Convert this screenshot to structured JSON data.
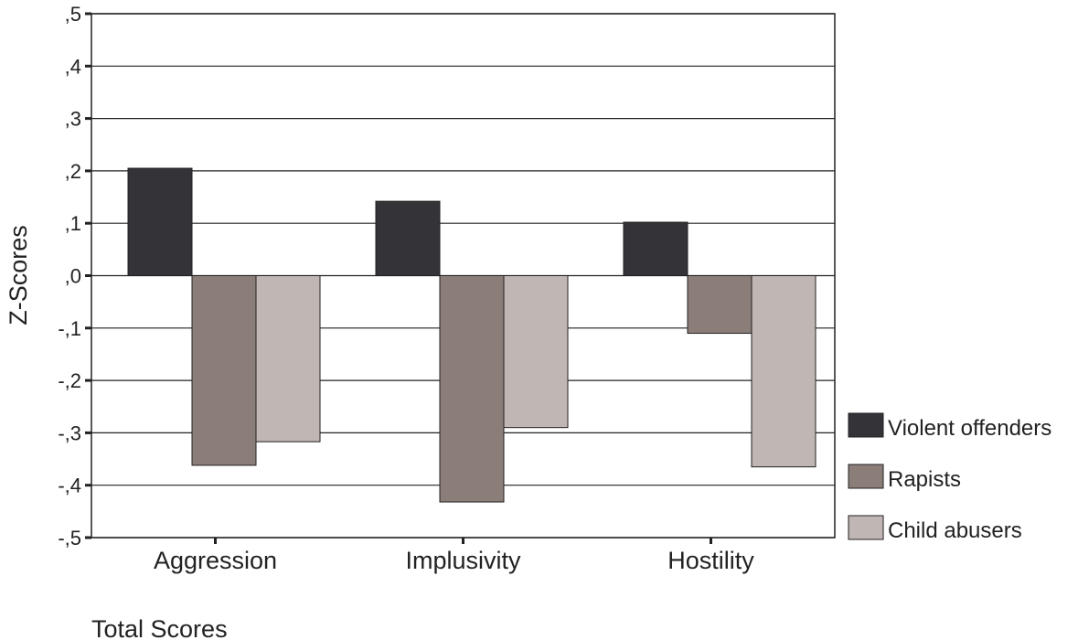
{
  "chart_data": {
    "type": "bar",
    "categories": [
      "Aggression",
      "Implusivity",
      "Hostility"
    ],
    "series": [
      {
        "name": "Violent offenders",
        "color": "#333338",
        "values": [
          0.205,
          0.142,
          0.102
        ]
      },
      {
        "name": "Rapists",
        "color": "#8b7e79",
        "values": [
          -0.362,
          -0.432,
          -0.11
        ]
      },
      {
        "name": "Child abusers",
        "color": "#c0b6b3",
        "values": [
          -0.317,
          -0.29,
          -0.365
        ]
      }
    ],
    "y_ticks": [
      0.5,
      0.4,
      0.3,
      0.2,
      0.1,
      0.0,
      -0.1,
      -0.2,
      -0.3,
      -0.4,
      -0.5
    ],
    "y_tick_labels": [
      ",5",
      ",4",
      ",3",
      ",2",
      ",1",
      ",0",
      "-,1",
      "-,2",
      "-,3",
      "-,4",
      "-,5"
    ],
    "ylim": [
      -0.5,
      0.5
    ],
    "xlabel": "Total Scores",
    "ylabel": "Z-Scores",
    "grid": true,
    "legend_position": "right"
  }
}
